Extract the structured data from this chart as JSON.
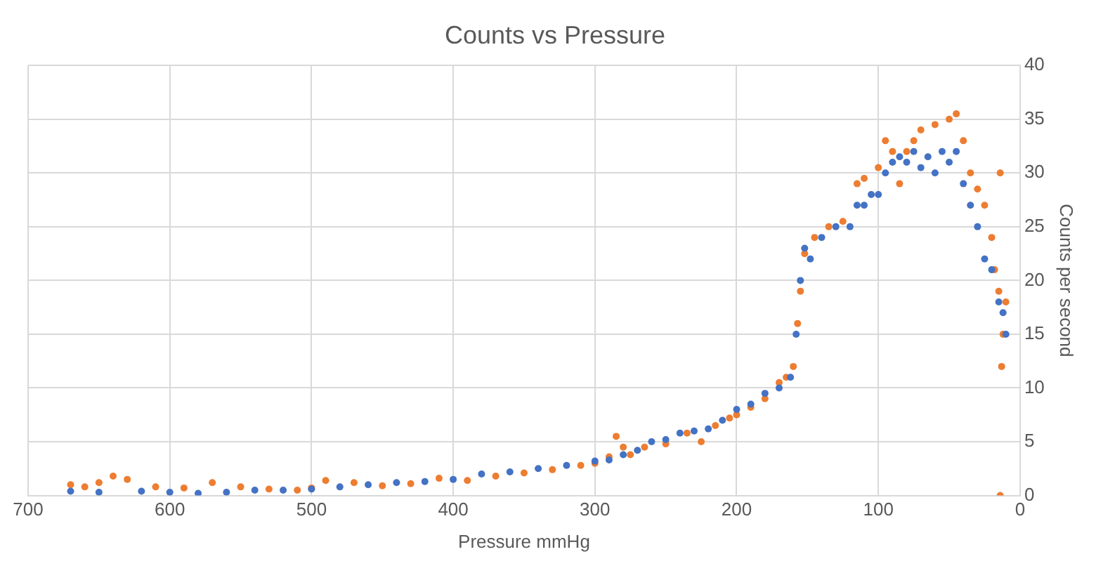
{
  "chart_data": {
    "type": "scatter",
    "title": "Counts vs Pressure",
    "xlabel": "Pressure mmHg",
    "ylabel": "Counts per second",
    "xlim": [
      700,
      0
    ],
    "xticks": [
      700,
      600,
      500,
      400,
      300,
      200,
      100,
      0
    ],
    "ylim": [
      0,
      40
    ],
    "yticks": [
      0,
      5,
      10,
      15,
      20,
      25,
      30,
      35,
      40
    ],
    "grid": true,
    "marker": "circle",
    "legend": false,
    "series": [
      {
        "color": "#4472c4",
        "x": [
          670,
          650,
          620,
          600,
          580,
          560,
          540,
          520,
          500,
          480,
          460,
          440,
          420,
          400,
          380,
          360,
          340,
          320,
          300,
          290,
          280,
          270,
          260,
          250,
          240,
          230,
          220,
          210,
          200,
          190,
          180,
          170,
          162,
          158,
          155,
          152,
          148,
          140,
          130,
          120,
          115,
          110,
          105,
          100,
          95,
          90,
          85,
          80,
          75,
          70,
          65,
          60,
          55,
          50,
          45,
          40,
          35,
          30,
          25,
          20,
          15,
          12,
          10
        ],
        "values": [
          0.4,
          0.3,
          0.4,
          0.3,
          0.2,
          0.3,
          0.5,
          0.5,
          0.6,
          0.8,
          1.0,
          1.2,
          1.3,
          1.5,
          2.0,
          2.2,
          2.5,
          2.8,
          3.2,
          3.3,
          3.8,
          4.2,
          5.0,
          5.2,
          5.8,
          6.0,
          6.2,
          7.0,
          8.0,
          8.5,
          9.5,
          10.0,
          11,
          15,
          20,
          23,
          22,
          24,
          25,
          25,
          27,
          27,
          28,
          28,
          30,
          31,
          31.5,
          31,
          32,
          30.5,
          31.5,
          30,
          32,
          31,
          32,
          29,
          27,
          25,
          22,
          21,
          18,
          17,
          15
        ]
      },
      {
        "color": "#ed7d31",
        "x": [
          670,
          660,
          650,
          640,
          630,
          610,
          590,
          570,
          550,
          530,
          510,
          500,
          490,
          470,
          450,
          430,
          410,
          390,
          370,
          350,
          330,
          310,
          300,
          290,
          285,
          280,
          275,
          265,
          250,
          235,
          225,
          215,
          205,
          200,
          190,
          180,
          170,
          165,
          160,
          157,
          155,
          152,
          145,
          135,
          125,
          115,
          110,
          100,
          95,
          90,
          85,
          80,
          75,
          70,
          60,
          50,
          45,
          40,
          35,
          30,
          25,
          20,
          18,
          15,
          14,
          14,
          13,
          12,
          10
        ],
        "values": [
          1.0,
          0.8,
          1.2,
          1.8,
          1.5,
          0.8,
          0.7,
          1.2,
          0.8,
          0.6,
          0.5,
          0.7,
          1.4,
          1.2,
          0.9,
          1.1,
          1.6,
          1.4,
          1.8,
          2.1,
          2.4,
          2.8,
          3.0,
          3.6,
          5.5,
          4.5,
          3.8,
          4.5,
          4.8,
          5.8,
          5.0,
          6.5,
          7.2,
          7.5,
          8.2,
          9.0,
          10.5,
          11,
          12,
          16,
          19,
          22.5,
          24,
          25,
          25.5,
          29,
          29.5,
          30.5,
          33,
          32,
          29,
          32,
          33,
          34,
          34.5,
          35,
          35.5,
          33,
          30,
          28.5,
          27,
          24,
          21,
          19,
          30,
          0,
          12,
          15,
          18
        ]
      }
    ]
  }
}
